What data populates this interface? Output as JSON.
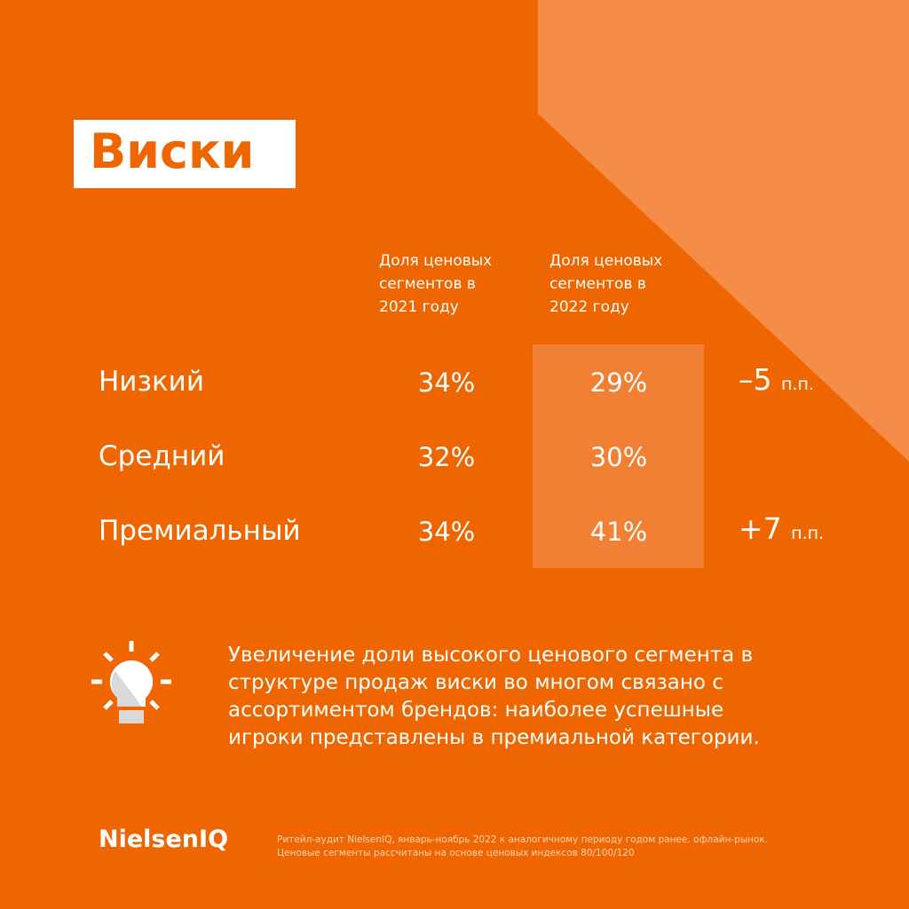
{
  "title": "Виски",
  "table": {
    "headers": [
      [
        "Доля ценовых",
        "сегментов в",
        "2021 году"
      ],
      [
        "Доля ценовых",
        "сегментов в",
        "2022 году"
      ]
    ],
    "rows": [
      {
        "name": "Низкий",
        "y2021": "34%",
        "y2022": "29%",
        "change": "–5",
        "unit": "п.п."
      },
      {
        "name": "Средний",
        "y2021": "32%",
        "y2022": "30%"
      },
      {
        "name": "Премиальный",
        "y2021": "34%",
        "y2022": "41%",
        "change": "+7",
        "unit": "п.п."
      }
    ]
  },
  "note": [
    "Увеличение доли высокого ценового сегмента в",
    "структуре продаж виски во многом связано с",
    "ассортиментом брендов: наиболее успешные",
    "игроки представлены в премиальной категории."
  ],
  "logo": "NielsenIQ",
  "footnote": [
    "Ритейл-аудит NielsenIQ, январь-ноябрь 2022 к аналогичному периоду годом ранее, офлайн-рынок.",
    "Ценовые сегменты рассчитаны на основе ценовых индексов 80/100/120"
  ]
}
